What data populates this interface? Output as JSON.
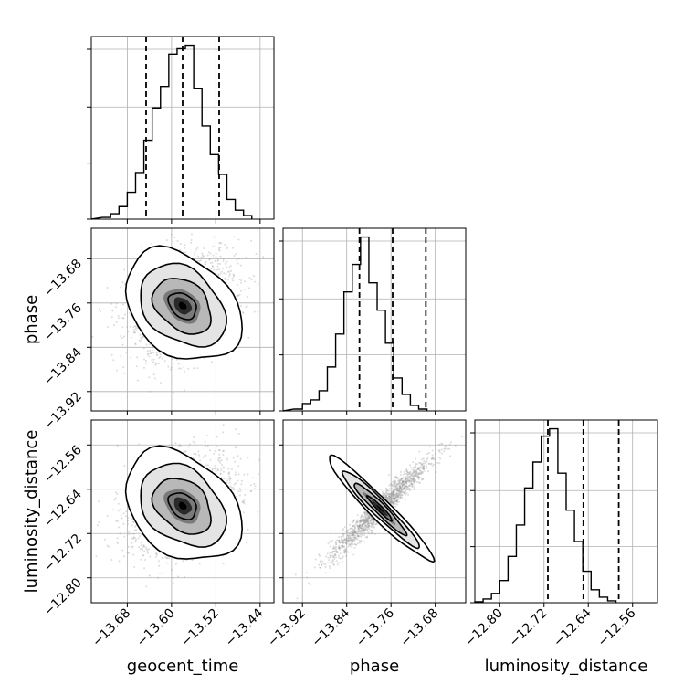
{
  "chart_data": {
    "type": "corner",
    "parameters": [
      "geocent_time",
      "phase",
      "luminosity_distance"
    ],
    "axes": {
      "geocent_time": {
        "label": "geocent_time",
        "range": [
          -13.745,
          -13.415
        ],
        "ticks": [
          -13.68,
          -13.6,
          -13.52,
          -13.44
        ],
        "tick_labels": [
          "−13.68",
          "−13.60",
          "−13.52",
          "−13.44"
        ]
      },
      "phase": {
        "label": "phase",
        "range": [
          -13.955,
          -13.625
        ],
        "ticks": [
          -13.92,
          -13.84,
          -13.76,
          -13.68
        ],
        "tick_labels": [
          "−13.92",
          "−13.84",
          "−13.76",
          "−13.68"
        ]
      },
      "luminosity_distance": {
        "label": "luminosity_distance",
        "range": [
          -12.845,
          -12.515
        ],
        "ticks": [
          -12.8,
          -12.72,
          -12.64,
          -12.56
        ],
        "tick_labels": [
          "−12.80",
          "−12.72",
          "−12.64",
          "−12.56"
        ]
      }
    },
    "histograms": [
      {
        "param": "geocent_time",
        "bins_left": -13.725,
        "bin_width": 0.015,
        "counts": [
          0.01,
          0.03,
          0.07,
          0.15,
          0.26,
          0.44,
          0.62,
          0.74,
          0.92,
          0.95,
          0.97,
          0.73,
          0.52,
          0.36,
          0.25,
          0.11,
          0.05,
          0.02
        ],
        "quantiles": [
          -13.646,
          -13.58,
          -13.514
        ]
      },
      {
        "param": "phase",
        "bins_left": -13.935,
        "bin_width": 0.015,
        "counts": [
          0.01,
          0.04,
          0.06,
          0.11,
          0.24,
          0.42,
          0.65,
          0.8,
          0.95,
          0.7,
          0.55,
          0.37,
          0.18,
          0.09,
          0.03,
          0.01
        ],
        "quantiles": [
          -13.817,
          -13.757,
          -13.697
        ]
      },
      {
        "param": "luminosity_distance",
        "bins_left": -12.845,
        "bin_width": 0.015,
        "counts": [
          0.005,
          0.02,
          0.05,
          0.12,
          0.25,
          0.42,
          0.62,
          0.76,
          0.9,
          0.94,
          0.7,
          0.5,
          0.33,
          0.17,
          0.07,
          0.03,
          0.01
        ],
        "quantiles": [
          -12.713,
          -12.649,
          -12.585
        ]
      }
    ],
    "pairs": [
      {
        "x": "geocent_time",
        "y": "phase",
        "center": [
          -13.58,
          -13.765
        ],
        "sigma": [
          0.05,
          0.048
        ],
        "rho": 0.32
      },
      {
        "x": "geocent_time",
        "y": "luminosity_distance",
        "center": [
          -13.58,
          -12.67
        ],
        "sigma": [
          0.05,
          0.048
        ],
        "rho": 0.32
      },
      {
        "x": "phase",
        "y": "luminosity_distance",
        "center": [
          -13.78,
          -12.675
        ],
        "sigma": [
          0.045,
          0.045
        ],
        "rho": 0.96
      }
    ],
    "grid": true,
    "colors": {
      "lines": "#000000",
      "grid": "#b0b0b0",
      "points": "#9a9a9a"
    }
  }
}
